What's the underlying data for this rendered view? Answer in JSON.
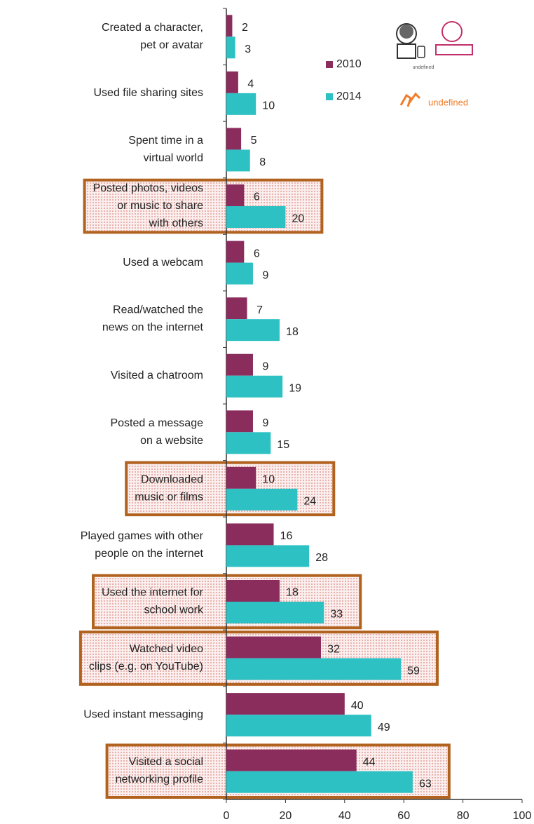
{
  "chart_data": {
    "type": "hbar",
    "categories": [
      "Created a character,\npet or avatar",
      "Used file sharing sites",
      "Spent time in a\nvirtual world",
      "Posted photos, videos\nor music to share\nwith others",
      "Used a webcam",
      "Read/watched the\nnews on the internet",
      "Visited a chatroom",
      "Posted a message\non a website",
      "Downloaded\nmusic or films",
      "Played games with other\npeople on the internet",
      "Used the internet for\nschool work",
      "Watched video\nclips (e.g. on YouTube)",
      "Used instant messaging",
      "Visited a social\nnetworking profile"
    ],
    "series": [
      {
        "name": "2010",
        "color": "#8a2c5c",
        "values": [
          2,
          4,
          5,
          6,
          6,
          7,
          9,
          9,
          10,
          16,
          18,
          32,
          40,
          44
        ]
      },
      {
        "name": "2014",
        "color": "#2ec1c4",
        "values": [
          3,
          10,
          8,
          20,
          9,
          18,
          19,
          15,
          24,
          28,
          33,
          59,
          49,
          63
        ]
      }
    ],
    "xlim": [
      0,
      100
    ],
    "xticks": [
      0,
      20,
      40,
      60,
      80,
      100
    ],
    "highlighted_categories": [
      3,
      8,
      10,
      11,
      13
    ],
    "highlight_color": "#b1621e",
    "legend": "upper right",
    "logos": [
      "www.eukidsonline.net",
      "Net Children\nGo Mobile"
    ]
  }
}
